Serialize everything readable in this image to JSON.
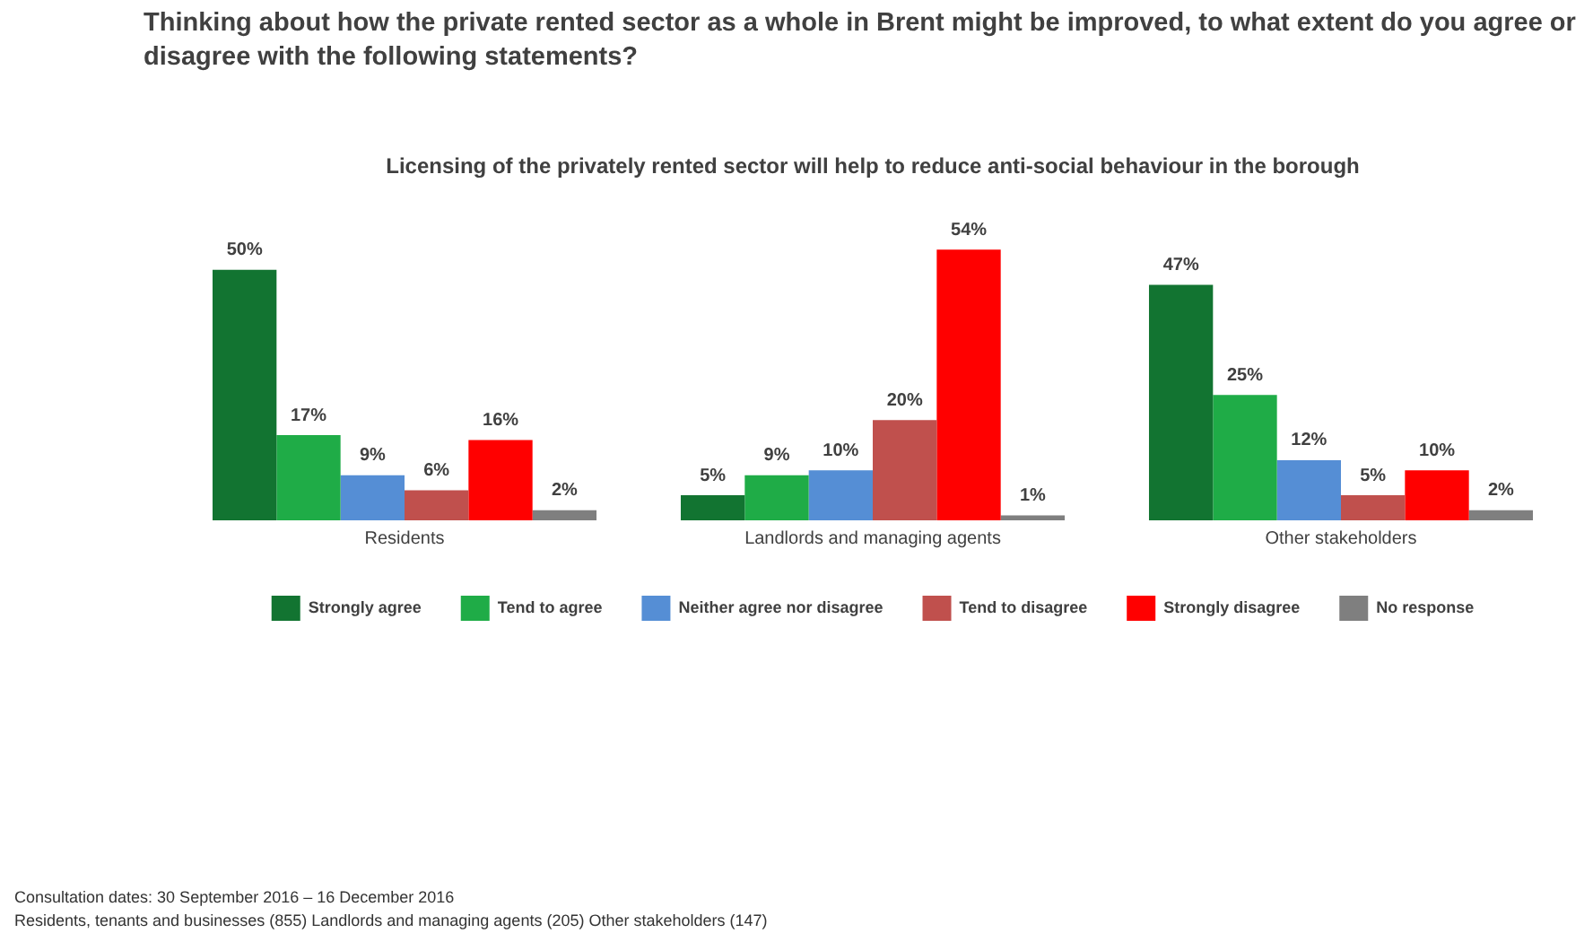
{
  "chart_data": {
    "type": "bar",
    "title": "Thinking about how the private rented sector as a whole in Brent might be improved, to what extent do you agree or disagree with the following statements?",
    "subtitle": "Licensing of the privately rented sector will help to reduce anti-social behaviour in the borough",
    "categories": [
      "Residents",
      "Landlords and managing agents",
      "Other stakeholders"
    ],
    "series": [
      {
        "name": "Strongly agree",
        "color": "#127431",
        "values": [
          50,
          5,
          47
        ],
        "value_labels": [
          "50%",
          "5%",
          "47%"
        ]
      },
      {
        "name": "Tend to agree",
        "color": "#1fac47",
        "values": [
          17,
          9,
          25
        ],
        "value_labels": [
          "17%",
          "9%",
          "25%"
        ]
      },
      {
        "name": "Neither agree nor disagree",
        "color": "#558ed5",
        "values": [
          9,
          10,
          12
        ],
        "value_labels": [
          "9%",
          "10%",
          "12%"
        ]
      },
      {
        "name": "Tend to disagree",
        "color": "#c0504d",
        "values": [
          6,
          20,
          5
        ],
        "value_labels": [
          "6%",
          "20%",
          "5%"
        ]
      },
      {
        "name": "Strongly disagree",
        "color": "#ff0000",
        "values": [
          16,
          54,
          10
        ],
        "value_labels": [
          "16%",
          "54%",
          "10%"
        ]
      },
      {
        "name": "No response",
        "color": "#7f7f7f",
        "values": [
          2,
          1,
          2
        ],
        "value_labels": [
          "2%",
          "1%",
          "2%"
        ]
      }
    ],
    "grid": false,
    "legend": "bottom",
    "tick_labels": "x",
    "annotations": [
      "Consultation dates: 30 September  2016 – 16 December  2016",
      "Residents, tenants and businesses (855) Landlords and managing agents (205) Other stakeholders (147)"
    ]
  }
}
